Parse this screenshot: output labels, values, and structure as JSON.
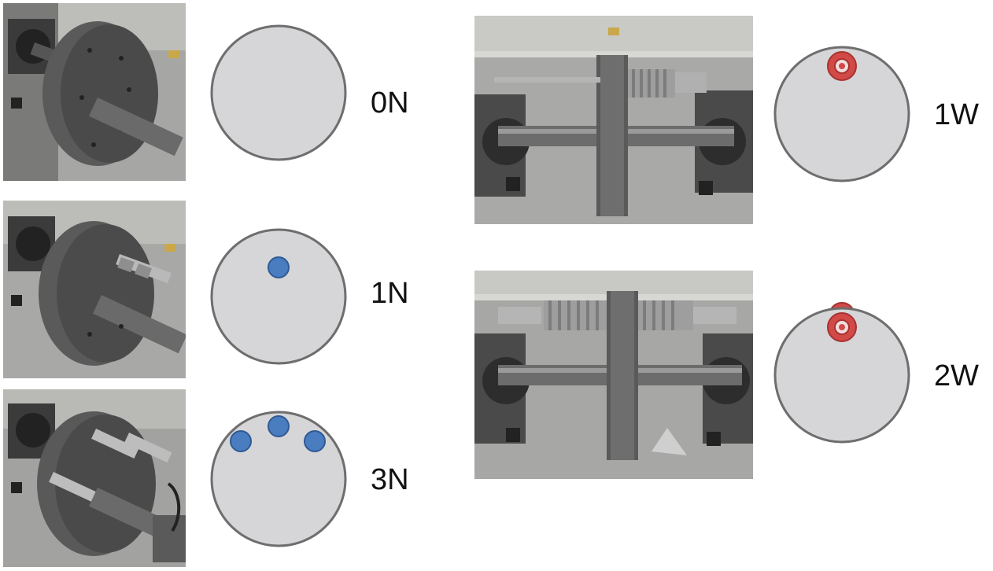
{
  "configurations": [
    {
      "id": "0N",
      "label": "0N",
      "pin_count": 0,
      "pin_type": "nut"
    },
    {
      "id": "1N",
      "label": "1N",
      "pin_count": 1,
      "pin_type": "nut"
    },
    {
      "id": "3N",
      "label": "3N",
      "pin_count": 3,
      "pin_type": "nut"
    },
    {
      "id": "1W",
      "label": "1W",
      "pin_count": 1,
      "pin_type": "washer-stack"
    },
    {
      "id": "2W",
      "label": "2W",
      "pin_count": 2,
      "pin_type": "washer-stack"
    }
  ],
  "colors": {
    "disk_fill": "#d6d6d8",
    "disk_stroke": "#6e6e6e",
    "nut_marker": "#4a7cc0",
    "nut_marker_stroke": "#2f5a94",
    "washer_marker": "#d24a48",
    "washer_marker_stroke": "#a83230"
  }
}
